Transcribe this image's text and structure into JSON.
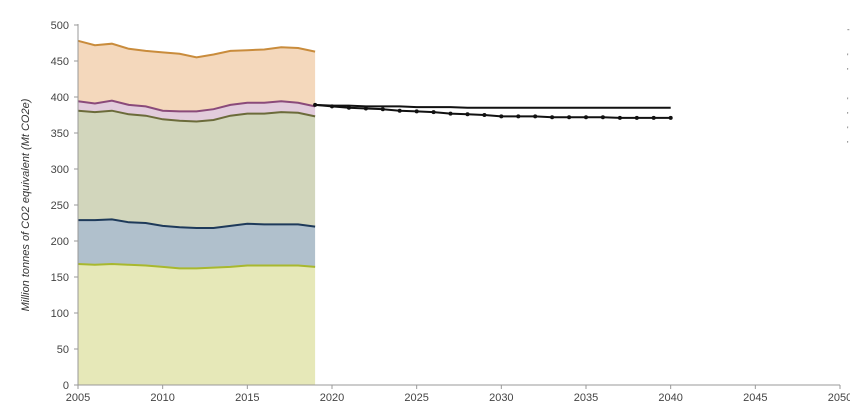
{
  "chart_data": {
    "type": "area",
    "ylabel": "Million tonnes of CO2 equivalent (Mt CO2e)",
    "xlim": [
      2005,
      2050
    ],
    "ylim": [
      0,
      500
    ],
    "x_ticks": [
      "2005",
      "2010",
      "2015",
      "2020",
      "2025",
      "2030",
      "2035",
      "2040",
      "2045",
      "2050"
    ],
    "y_ticks": [
      "0",
      "50",
      "100",
      "150",
      "200",
      "250",
      "300",
      "350",
      "400",
      "450",
      "500"
    ],
    "grid": false,
    "legend": "right",
    "historical_years": [
      2005,
      2006,
      2007,
      2008,
      2009,
      2010,
      2011,
      2012,
      2013,
      2014,
      2015,
      2016,
      2017,
      2018,
      2019
    ],
    "series": [
      {
        "kind": "stacked-area",
        "color": "#e6e8b8",
        "edge": "#a8b82e",
        "values": [
          168,
          167,
          168,
          167,
          166,
          164,
          162,
          162,
          163,
          164,
          166,
          166,
          166,
          166,
          164
        ]
      },
      {
        "kind": "stacked-area",
        "color": "#b0c0cc",
        "edge": "#1e3a5a",
        "values": [
          61,
          62,
          62,
          59,
          59,
          57,
          57,
          56,
          55,
          57,
          58,
          57,
          57,
          57,
          56
        ]
      },
      {
        "kind": "stacked-area",
        "color": "#d2d6bc",
        "edge": "#6b6b3a",
        "values": [
          152,
          150,
          151,
          150,
          149,
          148,
          148,
          148,
          150,
          153,
          153,
          154,
          156,
          155,
          153
        ]
      },
      {
        "kind": "stacked-area",
        "color": "#e2ccdc",
        "edge": "#8a4a7a",
        "values": [
          13,
          12,
          14,
          13,
          13,
          12,
          13,
          14,
          15,
          15,
          15,
          15,
          15,
          14,
          14
        ]
      },
      {
        "kind": "stacked-area",
        "color": "#f4d8bc",
        "edge": "#c98c3c",
        "values": [
          84,
          81,
          79,
          78,
          77,
          81,
          80,
          75,
          76,
          75,
          73,
          74,
          75,
          76,
          76
        ]
      },
      {
        "kind": "line",
        "marker": "none",
        "color": "#111111",
        "x": [
          2019,
          2020,
          2021,
          2022,
          2023,
          2024,
          2025,
          2026,
          2027,
          2028,
          2029,
          2030,
          2031,
          2032,
          2033,
          2034,
          2035,
          2036,
          2037,
          2038,
          2039,
          2040
        ],
        "values": [
          389,
          388,
          388,
          387,
          387,
          387,
          386,
          386,
          386,
          385,
          385,
          385,
          385,
          385,
          385,
          385,
          385,
          385,
          385,
          385,
          385,
          385
        ]
      },
      {
        "kind": "line",
        "marker": "dot",
        "color": "#111111",
        "x": [
          2019,
          2020,
          2021,
          2022,
          2023,
          2024,
          2025,
          2026,
          2027,
          2028,
          2029,
          2030,
          2031,
          2032,
          2033,
          2034,
          2035,
          2036,
          2037,
          2038,
          2039,
          2040
        ],
        "values": [
          389,
          387,
          385,
          384,
          383,
          381,
          380,
          379,
          377,
          376,
          375,
          373,
          373,
          373,
          372,
          372,
          372,
          372,
          371,
          371,
          371,
          371
        ]
      }
    ],
    "legend_marks": [
      {
        "glyph": "-",
        "color": "#333333"
      },
      {
        "glyph": "'",
        "color": "#666666"
      },
      {
        "glyph": "'",
        "color": "#999999"
      },
      {
        "glyph": "'",
        "color": "#8a4a7a"
      },
      {
        "glyph": "'",
        "color": "#6b6b3a"
      },
      {
        "glyph": "'",
        "color": "#1e3a5a"
      },
      {
        "glyph": "'",
        "color": "#a8b82e"
      }
    ]
  }
}
